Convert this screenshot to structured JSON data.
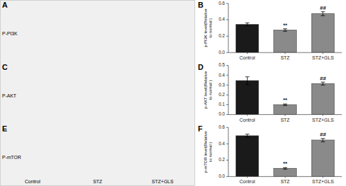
{
  "chart_data": [
    {
      "type": "image",
      "categories": [
        "Control",
        "STZ",
        "STZ+GLS"
      ]
    },
    {
      "type": "bar",
      "title": "B",
      "annotations": [
        "A",
        "P-PI3K"
      ],
      "ylabel": "p-PI3K level(Relative\nto normal )",
      "categories": [
        "Control",
        "STZ",
        "STZ+GLS"
      ],
      "values": [
        0.345,
        0.275,
        0.475
      ],
      "errors": [
        0.018,
        0.015,
        0.025
      ],
      "sig_labels": [
        null,
        "**",
        "##"
      ],
      "colors": [
        "#1a1a1a",
        "#8a8a8a",
        "#8a8a8a"
      ],
      "ylim": [
        0,
        0.6
      ],
      "yticks": [
        {
          "value": 0.0,
          "label": "0.0"
        },
        0.2,
        0.4,
        0.6
      ]
    },
    {
      "type": "bar",
      "title": "D",
      "annotations": [
        "C",
        "P-AKT"
      ],
      "ylabel": "p-AKT level(Relative\nto normal )",
      "categories": [
        "Control",
        "STZ",
        "STZ+GLS"
      ],
      "values": [
        0.345,
        0.1,
        0.315
      ],
      "errors": [
        0.04,
        0.008,
        0.015
      ],
      "sig_labels": [
        null,
        "**",
        "##"
      ],
      "colors": [
        "#1a1a1a",
        "#8a8a8a",
        "#8a8a8a"
      ],
      "ylim": [
        0,
        0.5
      ],
      "yticks": [
        {
          "value": 0.0,
          "label": "0.0"
        },
        0.1,
        0.2,
        0.3,
        0.4,
        0.5
      ]
    },
    {
      "type": "bar",
      "title": "F",
      "annotations": [
        "E",
        "P-mTOR"
      ],
      "ylabel": "p-mTOR level(Relative\nto normal )",
      "categories": [
        "Control",
        "STZ",
        "STZ+GLS"
      ],
      "values": [
        0.5,
        0.1,
        0.445
      ],
      "errors": [
        0.018,
        0.01,
        0.02
      ],
      "sig_labels": [
        null,
        "**",
        "##"
      ],
      "colors": [
        "#1a1a1a",
        "#8a8a8a",
        "#8a8a8a"
      ],
      "ylim": [
        0,
        0.6
      ],
      "yticks": [
        {
          "value": 0.0,
          "label": "0.0"
        },
        0.2,
        0.4,
        0.6
      ]
    }
  ]
}
